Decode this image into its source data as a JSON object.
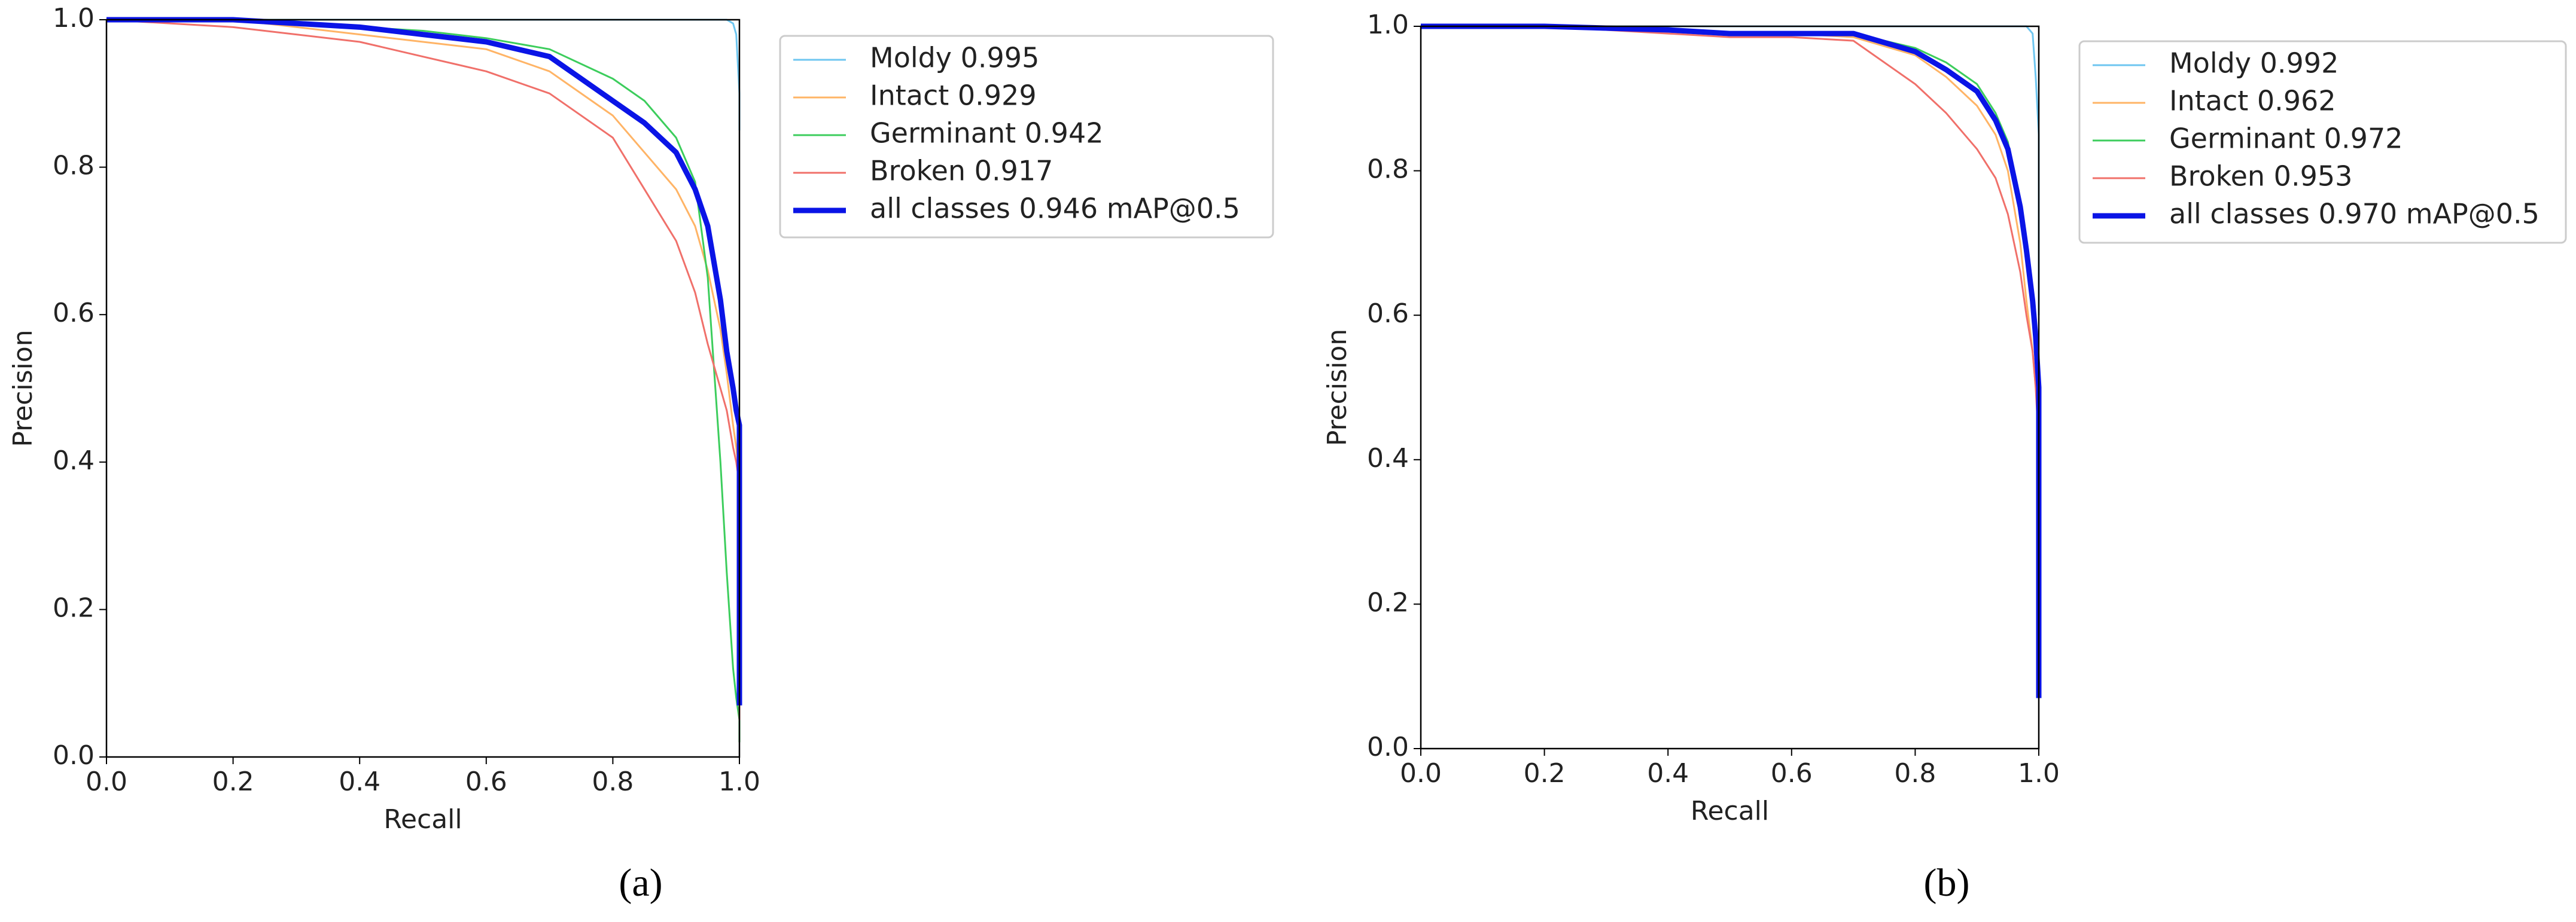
{
  "chart_data": [
    {
      "type": "line",
      "panel_label": "(a)",
      "xlabel": "Recall",
      "ylabel": "Precision",
      "x": [
        0,
        0.2,
        0.4,
        0.5,
        0.6,
        0.7,
        0.8,
        0.85,
        0.9,
        0.93,
        0.95,
        0.97,
        0.98,
        0.99,
        0.995,
        1.0,
        1.0
      ],
      "xlim": [
        0,
        1
      ],
      "ylim": [
        0,
        1
      ],
      "xticks": [
        {
          "value": 0,
          "label": "0.0"
        },
        0.2,
        0.4,
        0.6,
        0.8,
        {
          "value": 1,
          "label": "1.0"
        }
      ],
      "yticks": [
        {
          "value": 0,
          "label": "0.0"
        },
        0.2,
        0.4,
        0.6,
        0.8,
        {
          "value": 1,
          "label": "1.0"
        }
      ],
      "legend": "upper right outside",
      "series": [
        {
          "name": "Moldy 0.995",
          "color": "#6ec6f0",
          "linewidth": 3,
          "values": [
            1,
            1,
            1,
            1,
            1,
            1,
            1,
            1,
            1,
            1,
            1,
            1,
            1,
            0.995,
            0.98,
            0.9,
            0.85
          ]
        },
        {
          "name": "Intact 0.929",
          "color": "#ffb466",
          "linewidth": 3,
          "values": [
            1,
            1,
            0.98,
            0.97,
            0.96,
            0.93,
            0.87,
            0.82,
            0.77,
            0.72,
            0.66,
            0.58,
            0.52,
            0.45,
            0.42,
            0.38,
            0.05
          ]
        },
        {
          "name": "Germinant 0.942",
          "color": "#3ccd5c",
          "linewidth": 3,
          "values": [
            1,
            1,
            0.99,
            0.985,
            0.975,
            0.96,
            0.92,
            0.89,
            0.84,
            0.78,
            0.65,
            0.4,
            0.25,
            0.12,
            0.08,
            0.05,
            0.02
          ]
        },
        {
          "name": "Broken 0.917",
          "color": "#f0706a",
          "linewidth": 3,
          "values": [
            1,
            0.99,
            0.97,
            0.95,
            0.93,
            0.9,
            0.84,
            0.77,
            0.7,
            0.63,
            0.56,
            0.5,
            0.47,
            0.42,
            0.4,
            0.37,
            0.05
          ]
        },
        {
          "name": "all classes 0.946 mAP@0.5",
          "color": "#0a14e6",
          "linewidth": 9,
          "values": [
            1,
            1,
            0.99,
            0.98,
            0.97,
            0.95,
            0.89,
            0.86,
            0.82,
            0.77,
            0.72,
            0.62,
            0.55,
            0.5,
            0.47,
            0.45,
            0.07
          ]
        }
      ]
    },
    {
      "type": "line",
      "panel_label": "(b)",
      "xlabel": "Recall",
      "ylabel": "Precision",
      "x": [
        0,
        0.2,
        0.4,
        0.5,
        0.6,
        0.7,
        0.8,
        0.85,
        0.9,
        0.93,
        0.95,
        0.97,
        0.98,
        0.99,
        0.995,
        1.0,
        1.0
      ],
      "xlim": [
        0,
        1
      ],
      "ylim": [
        0,
        1
      ],
      "xticks": [
        {
          "value": 0,
          "label": "0.0"
        },
        0.2,
        0.4,
        0.6,
        0.8,
        {
          "value": 1,
          "label": "1.0"
        }
      ],
      "yticks": [
        {
          "value": 0,
          "label": "0.0"
        },
        0.2,
        0.4,
        0.6,
        0.8,
        {
          "value": 1,
          "label": "1.0"
        }
      ],
      "legend": "upper right outside",
      "series": [
        {
          "name": "Moldy 0.992",
          "color": "#6ec6f0",
          "linewidth": 3,
          "values": [
            1,
            1,
            1,
            1,
            1,
            1,
            1,
            1,
            1,
            1,
            1,
            1,
            1,
            0.99,
            0.93,
            0.85,
            0.6
          ]
        },
        {
          "name": "Intact 0.962",
          "color": "#ffb466",
          "linewidth": 3,
          "values": [
            1,
            1,
            0.995,
            0.99,
            0.99,
            0.985,
            0.96,
            0.93,
            0.89,
            0.85,
            0.8,
            0.7,
            0.62,
            0.55,
            0.5,
            0.45,
            0.07
          ]
        },
        {
          "name": "Germinant 0.972",
          "color": "#3ccd5c",
          "linewidth": 3,
          "values": [
            1,
            1,
            0.995,
            0.99,
            0.99,
            0.99,
            0.97,
            0.95,
            0.92,
            0.88,
            0.84,
            0.75,
            0.68,
            0.6,
            0.55,
            0.5,
            0.1
          ]
        },
        {
          "name": "Broken 0.953",
          "color": "#f0706a",
          "linewidth": 3,
          "values": [
            1,
            1,
            0.99,
            0.985,
            0.985,
            0.98,
            0.92,
            0.88,
            0.83,
            0.79,
            0.74,
            0.66,
            0.6,
            0.55,
            0.5,
            0.42,
            0.07
          ]
        },
        {
          "name": "all classes 0.970 mAP@0.5",
          "color": "#0a14e6",
          "linewidth": 9,
          "values": [
            1,
            1,
            0.995,
            0.99,
            0.99,
            0.99,
            0.965,
            0.94,
            0.91,
            0.87,
            0.83,
            0.75,
            0.69,
            0.62,
            0.57,
            0.5,
            0.07
          ]
        }
      ]
    }
  ]
}
